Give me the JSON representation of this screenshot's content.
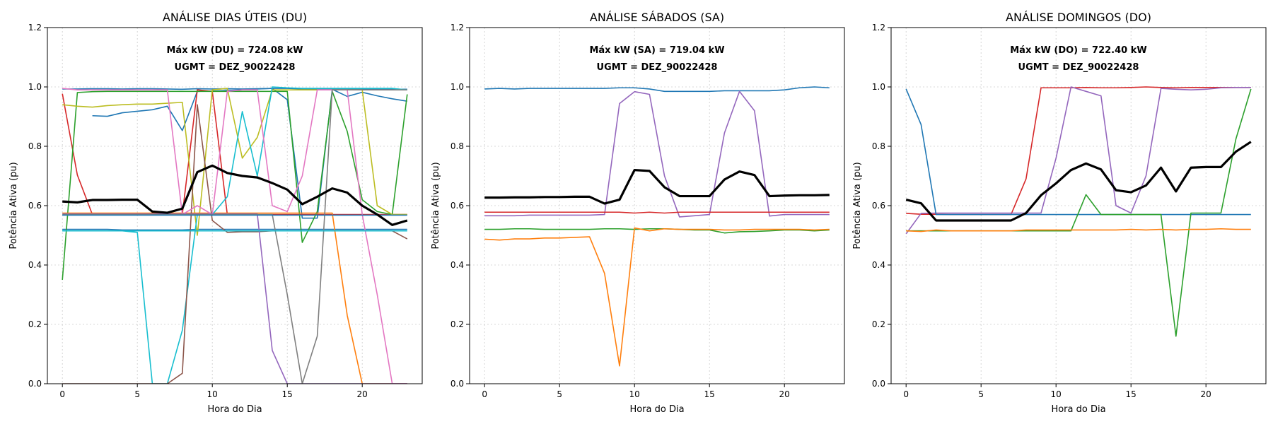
{
  "chart_data": [
    {
      "type": "line",
      "title": "ANÁLISE DIAS ÚTEIS (DU)",
      "xlabel": "Hora do Dia",
      "ylabel": "Potência Ativa (pu)",
      "xlim": [
        -1,
        24
      ],
      "ylim": [
        0,
        1.2
      ],
      "xticks": [
        0,
        5,
        10,
        15,
        20
      ],
      "yticks": [
        0.0,
        0.2,
        0.4,
        0.6,
        0.8,
        1.0,
        1.2
      ],
      "grid": true,
      "annotations": [
        "Máx kW (DU) = 724.08 kW",
        "UGMT = DEZ_90022428"
      ],
      "x": [
        0,
        1,
        2,
        3,
        4,
        5,
        6,
        7,
        8,
        9,
        10,
        11,
        12,
        13,
        14,
        15,
        16,
        17,
        18,
        19,
        20,
        21,
        22,
        23
      ],
      "series": [
        {
          "color": "#1f77b4",
          "values": [
            0.993,
            0.993,
            0.994,
            0.994,
            0.993,
            0.994,
            0.994,
            0.993,
            0.992,
            0.994,
            0.993,
            0.994,
            0.993,
            0.994,
            0.995,
            0.995,
            0.993,
            0.994,
            0.993,
            0.994,
            0.992,
            0.993,
            0.992,
            0.992
          ]
        },
        {
          "color": "#1f77b4",
          "values": [
            null,
            null,
            0.903,
            0.901,
            0.913,
            0.918,
            0.923,
            0.935,
            0.853,
            0.985,
            0.986,
            0.988,
            0.99,
            0.993,
            0.995,
            0.957,
            0.558,
            0.558,
            0.992,
            0.968,
            0.982,
            0.97,
            0.96,
            0.952
          ]
        },
        {
          "color": "#1f77b4",
          "values": [
            0.52,
            0.52,
            0.52,
            0.52,
            0.518,
            0.518,
            0.518,
            0.518,
            0.518,
            0.52,
            0.52,
            0.52,
            0.52,
            0.52,
            0.52,
            0.52,
            0.52,
            0.52,
            0.52,
            0.52,
            0.52,
            0.52,
            0.52,
            0.52
          ]
        },
        {
          "color": "#d62728",
          "values": [
            0.977,
            0.703,
            0.57,
            0.57,
            0.57,
            0.57,
            0.57,
            0.57,
            0.57,
            0.99,
            0.985,
            0.57,
            0.57,
            0.57,
            0.57,
            0.57,
            0.57,
            0.57,
            0.57,
            0.57,
            0.57,
            0.57,
            0.57,
            0.57
          ]
        },
        {
          "color": "#2ca02c",
          "values": [
            0.35,
            0.981,
            0.984,
            0.985,
            0.985,
            0.985,
            0.985,
            0.985,
            0.985,
            0.985,
            0.985,
            0.985,
            0.985,
            0.985,
            0.985,
            0.985,
            0.476,
            0.58,
            0.985,
            0.85,
            0.62,
            0.58,
            0.57,
            0.975
          ]
        },
        {
          "color": "#bcbd22",
          "values": [
            0.94,
            0.935,
            0.932,
            0.937,
            0.94,
            0.942,
            0.942,
            0.945,
            0.948,
            0.5,
            0.99,
            0.995,
            0.76,
            0.83,
            0.99,
            0.99,
            0.99,
            0.99,
            0.99,
            0.99,
            0.99,
            0.6,
            0.57,
            0.57
          ]
        },
        {
          "color": "#ff7f0e",
          "values": [
            0.575,
            0.575,
            0.575,
            0.575,
            0.575,
            0.575,
            0.575,
            0.575,
            0.575,
            0.575,
            0.575,
            0.575,
            0.575,
            0.575,
            0.575,
            0.575,
            0.575,
            0.575,
            0.575,
            0.23,
            0.0,
            0.0,
            0.0,
            0.0
          ]
        },
        {
          "color": "#17becf",
          "values": [
            0.515,
            0.515,
            0.515,
            0.515,
            0.515,
            0.51,
            0.0,
            0.0,
            0.18,
            0.57,
            0.57,
            0.63,
            0.917,
            0.7,
            1.0,
            0.997,
            0.995,
            0.995,
            0.995,
            0.995,
            0.995,
            0.995,
            0.995,
            0.99
          ]
        },
        {
          "color": "#8c564b",
          "values": [
            0.0,
            0.0,
            0.0,
            0.0,
            0.0,
            0.0,
            0.0,
            0.0,
            0.035,
            0.94,
            0.55,
            0.51,
            0.512,
            0.512,
            0.515,
            0.515,
            0.515,
            0.515,
            0.515,
            0.515,
            0.515,
            0.515,
            0.515,
            0.488
          ]
        },
        {
          "color": "#e377c2",
          "values": [
            0.995,
            0.99,
            0.99,
            0.99,
            0.99,
            0.99,
            0.99,
            0.99,
            0.57,
            0.6,
            0.57,
            0.985,
            0.99,
            0.99,
            0.6,
            0.58,
            0.7,
            0.99,
            0.99,
            0.99,
            0.57,
            0.3,
            0.0,
            0.0
          ]
        },
        {
          "color": "#9467bd",
          "values": [
            0.572,
            0.572,
            0.572,
            0.572,
            0.572,
            0.572,
            0.572,
            0.572,
            0.572,
            0.572,
            0.572,
            0.572,
            0.572,
            0.572,
            0.112,
            0.0,
            0.0,
            0.0,
            0.0,
            0.0,
            0.0,
            0.0,
            0.0,
            0.0
          ]
        },
        {
          "color": "#7f7f7f",
          "values": [
            0.57,
            0.57,
            0.57,
            0.57,
            0.57,
            0.57,
            0.57,
            0.57,
            0.57,
            0.57,
            0.57,
            0.57,
            0.57,
            0.57,
            0.57,
            0.3,
            0.0,
            0.16,
            0.99,
            0.99,
            0.99,
            0.99,
            0.99,
            0.99
          ]
        },
        {
          "color": "#1f77b4",
          "values": [
            0.568,
            0.568,
            0.568,
            0.568,
            0.568,
            0.568,
            0.568,
            0.568,
            0.568,
            0.568,
            0.568,
            0.568,
            0.568,
            0.568,
            0.568,
            0.568,
            0.568,
            0.568,
            0.568,
            0.568,
            0.568,
            0.568,
            0.568,
            0.568
          ]
        },
        {
          "color": "#17becf",
          "values": [
            0.515,
            0.515,
            0.515,
            0.515,
            0.515,
            0.515,
            0.515,
            0.515,
            0.515,
            0.515,
            0.515,
            0.515,
            0.515,
            0.515,
            0.515,
            0.515,
            0.515,
            0.515,
            0.515,
            0.515,
            0.515,
            0.515,
            0.515,
            0.515
          ]
        },
        {
          "color": "#000000",
          "width": 3.2,
          "values": [
            0.614,
            0.611,
            0.619,
            0.619,
            0.62,
            0.62,
            0.58,
            0.576,
            0.59,
            0.713,
            0.735,
            0.71,
            0.7,
            0.695,
            0.676,
            0.654,
            0.605,
            0.63,
            0.658,
            0.644,
            0.6,
            0.57,
            0.535,
            0.55
          ]
        }
      ]
    },
    {
      "type": "line",
      "title": "ANÁLISE SÁBADOS (SA)",
      "xlabel": "Hora do Dia",
      "ylabel": "Potência Ativa (pu)",
      "xlim": [
        -1,
        24
      ],
      "ylim": [
        0,
        1.2
      ],
      "xticks": [
        0,
        5,
        10,
        15,
        20
      ],
      "yticks": [
        0.0,
        0.2,
        0.4,
        0.6,
        0.8,
        1.0,
        1.2
      ],
      "grid": true,
      "annotations": [
        "Máx kW (SA) = 719.04 kW",
        "UGMT = DEZ_90022428"
      ],
      "x": [
        0,
        1,
        2,
        3,
        4,
        5,
        6,
        7,
        8,
        9,
        10,
        11,
        12,
        13,
        14,
        15,
        16,
        17,
        18,
        19,
        20,
        21,
        22,
        23
      ],
      "series": [
        {
          "color": "#1f77b4",
          "values": [
            0.993,
            0.995,
            0.993,
            0.995,
            0.995,
            0.995,
            0.995,
            0.995,
            0.995,
            0.997,
            0.997,
            0.993,
            0.985,
            0.985,
            0.985,
            0.985,
            0.987,
            0.987,
            0.987,
            0.987,
            0.99,
            0.997,
            1.0,
            0.997
          ]
        },
        {
          "color": "#9467bd",
          "values": [
            0.566,
            0.566,
            0.566,
            0.568,
            0.568,
            0.568,
            0.568,
            0.568,
            0.57,
            0.944,
            0.984,
            0.975,
            0.7,
            0.562,
            0.566,
            0.57,
            0.845,
            0.985,
            0.92,
            0.565,
            0.57,
            0.57,
            0.57,
            0.57
          ]
        },
        {
          "color": "#d62728",
          "values": [
            0.578,
            0.578,
            0.578,
            0.578,
            0.578,
            0.578,
            0.578,
            0.578,
            0.578,
            0.578,
            0.575,
            0.578,
            0.575,
            0.578,
            0.578,
            0.578,
            0.578,
            0.578,
            0.578,
            0.578,
            0.578,
            0.578,
            0.578,
            0.578
          ]
        },
        {
          "color": "#2ca02c",
          "values": [
            0.52,
            0.52,
            0.522,
            0.522,
            0.52,
            0.52,
            0.52,
            0.52,
            0.522,
            0.522,
            0.52,
            0.522,
            0.522,
            0.52,
            0.518,
            0.518,
            0.508,
            0.512,
            0.513,
            0.515,
            0.518,
            0.518,
            0.515,
            0.518
          ]
        },
        {
          "color": "#ff7f0e",
          "values": [
            0.487,
            0.484,
            0.488,
            0.488,
            0.491,
            0.491,
            0.493,
            0.495,
            0.372,
            0.06,
            0.525,
            0.515,
            0.522,
            0.52,
            0.52,
            0.52,
            0.518,
            0.518,
            0.52,
            0.52,
            0.52,
            0.52,
            0.518,
            0.52
          ]
        },
        {
          "color": "#000000",
          "width": 3.2,
          "values": [
            0.627,
            0.627,
            0.628,
            0.628,
            0.629,
            0.629,
            0.63,
            0.63,
            0.607,
            0.62,
            0.72,
            0.717,
            0.662,
            0.632,
            0.632,
            0.632,
            0.688,
            0.715,
            0.703,
            0.632,
            0.634,
            0.635,
            0.635,
            0.636
          ]
        }
      ]
    },
    {
      "type": "line",
      "title": "ANÁLISE DOMINGOS (DO)",
      "xlabel": "Hora do Dia",
      "ylabel": "Potência Ativa (pu)",
      "xlim": [
        -1,
        24
      ],
      "ylim": [
        0,
        1.2
      ],
      "xticks": [
        0,
        5,
        10,
        15,
        20
      ],
      "yticks": [
        0.0,
        0.2,
        0.4,
        0.6,
        0.8,
        1.0,
        1.2
      ],
      "grid": true,
      "annotations": [
        "Máx kW (DO) = 722.40 kW",
        "UGMT = DEZ_90022428"
      ],
      "x": [
        0,
        1,
        2,
        3,
        4,
        5,
        6,
        7,
        8,
        9,
        10,
        11,
        12,
        13,
        14,
        15,
        16,
        17,
        18,
        19,
        20,
        21,
        22,
        23
      ],
      "series": [
        {
          "color": "#d62728",
          "values": [
            0.574,
            0.571,
            0.571,
            0.57,
            0.57,
            0.57,
            0.57,
            0.57,
            0.69,
            0.997,
            0.997,
            0.997,
            0.998,
            0.997,
            0.997,
            0.998,
            1.0,
            0.998,
            0.997,
            0.998,
            0.998,
            0.998,
            0.998,
            0.998
          ]
        },
        {
          "color": "#9467bd",
          "values": [
            0.505,
            0.574,
            0.575,
            0.575,
            0.575,
            0.575,
            0.575,
            0.575,
            0.575,
            0.575,
            0.76,
            1.0,
            0.985,
            0.97,
            0.6,
            0.575,
            0.7,
            0.995,
            0.992,
            0.99,
            0.992,
            0.997,
            0.998,
            0.998
          ]
        },
        {
          "color": "#1f77b4",
          "values": [
            0.993,
            0.873,
            0.57,
            0.57,
            0.57,
            0.57,
            0.57,
            0.57,
            0.57,
            0.57,
            0.57,
            0.57,
            0.57,
            0.57,
            0.57,
            0.57,
            0.57,
            0.57,
            0.57,
            0.57,
            0.57,
            0.57,
            0.57,
            0.57
          ]
        },
        {
          "color": "#2ca02c",
          "values": [
            0.515,
            0.515,
            0.515,
            0.515,
            0.515,
            0.515,
            0.515,
            0.515,
            0.515,
            0.515,
            0.515,
            0.515,
            0.637,
            0.57,
            0.57,
            0.57,
            0.57,
            0.57,
            0.16,
            0.575,
            0.575,
            0.575,
            0.825,
            0.993
          ]
        },
        {
          "color": "#ff7f0e",
          "values": [
            0.515,
            0.513,
            0.518,
            0.515,
            0.515,
            0.515,
            0.515,
            0.515,
            0.518,
            0.518,
            0.518,
            0.518,
            0.518,
            0.518,
            0.518,
            0.52,
            0.518,
            0.52,
            0.518,
            0.52,
            0.52,
            0.522,
            0.52,
            0.52
          ]
        },
        {
          "color": "#000000",
          "width": 3.2,
          "values": [
            0.62,
            0.608,
            0.55,
            0.55,
            0.55,
            0.55,
            0.55,
            0.55,
            0.575,
            0.635,
            0.675,
            0.72,
            0.742,
            0.722,
            0.652,
            0.645,
            0.668,
            0.728,
            0.648,
            0.728,
            0.73,
            0.73,
            0.782,
            0.815
          ]
        }
      ]
    }
  ]
}
